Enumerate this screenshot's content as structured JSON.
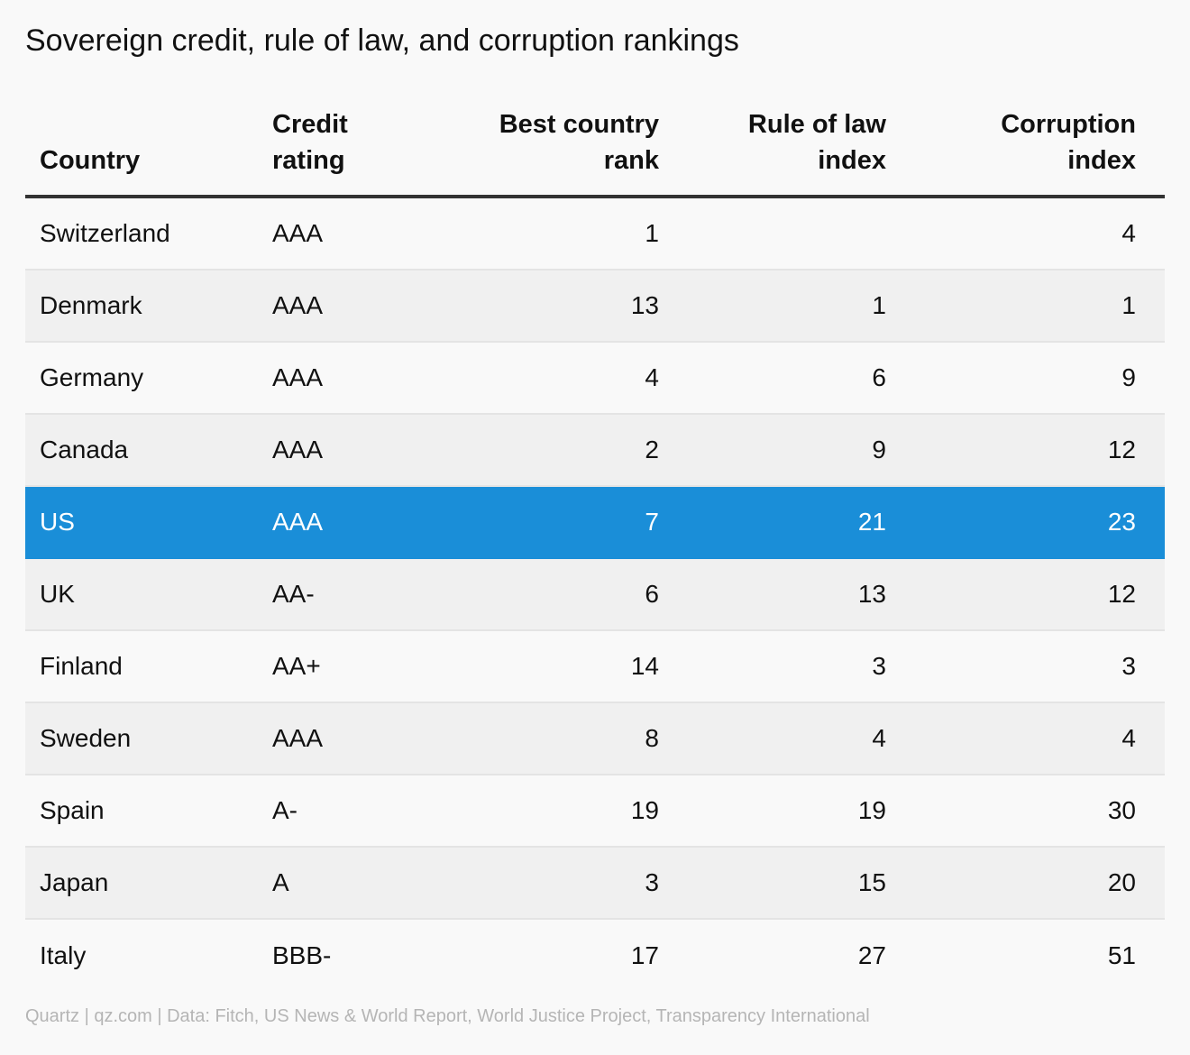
{
  "title": "Sovereign credit, rule of law, and corruption rankings",
  "columns": [
    {
      "line1": "",
      "line2": "Country"
    },
    {
      "line1": "Credit",
      "line2": "rating"
    },
    {
      "line1": "Best country",
      "line2": "rank"
    },
    {
      "line1": "Rule of law",
      "line2": "index"
    },
    {
      "line1": "Corruption",
      "line2": "index"
    }
  ],
  "rows": [
    {
      "country": "Switzerland",
      "rating": "AAA",
      "best": "1",
      "law": "",
      "corruption": "4",
      "highlight": false
    },
    {
      "country": "Denmark",
      "rating": "AAA",
      "best": "13",
      "law": "1",
      "corruption": "1",
      "highlight": false
    },
    {
      "country": "Germany",
      "rating": "AAA",
      "best": "4",
      "law": "6",
      "corruption": "9",
      "highlight": false
    },
    {
      "country": "Canada",
      "rating": "AAA",
      "best": "2",
      "law": "9",
      "corruption": "12",
      "highlight": false
    },
    {
      "country": "US",
      "rating": "AAA",
      "best": "7",
      "law": "21",
      "corruption": "23",
      "highlight": true
    },
    {
      "country": "UK",
      "rating": "AA-",
      "best": "6",
      "law": "13",
      "corruption": "12",
      "highlight": false
    },
    {
      "country": "Finland",
      "rating": "AA+",
      "best": "14",
      "law": "3",
      "corruption": "3",
      "highlight": false
    },
    {
      "country": "Sweden",
      "rating": "AAA",
      "best": "8",
      "law": "4",
      "corruption": "4",
      "highlight": false
    },
    {
      "country": "Spain",
      "rating": "A-",
      "best": "19",
      "law": "19",
      "corruption": "30",
      "highlight": false
    },
    {
      "country": "Japan",
      "rating": "A",
      "best": "3",
      "law": "15",
      "corruption": "20",
      "highlight": false
    },
    {
      "country": "Italy",
      "rating": "BBB-",
      "best": "17",
      "law": "27",
      "corruption": "51",
      "highlight": false
    }
  ],
  "source": "Quartz | qz.com | Data: Fitch, US News & World Report, World Justice Project, Transparency International",
  "colors": {
    "highlight": "#1a8ed8",
    "header_rule": "#333333",
    "source_text": "#b5b5b5"
  }
}
